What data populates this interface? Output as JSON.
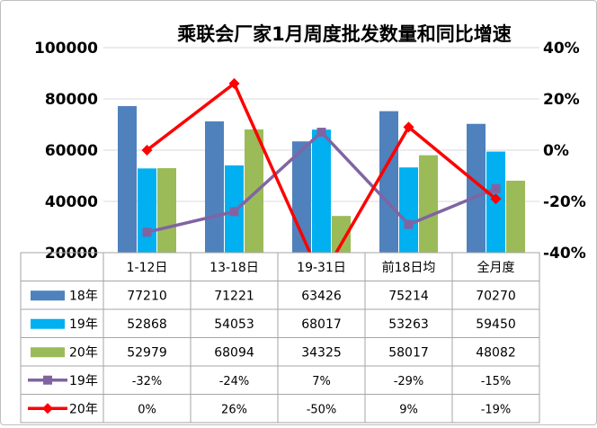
{
  "chart_data": {
    "type": "bar",
    "title": "乘联会厂家1月周度批发数量和同比增速",
    "categories": [
      "1-12日",
      "13-18日",
      "19-31日",
      "前18日均",
      "全月度"
    ],
    "y_left": {
      "min": 20000,
      "max": 100000,
      "ticks": [
        "20000",
        "40000",
        "60000",
        "80000",
        "100000"
      ]
    },
    "y_right": {
      "min": -40,
      "max": 40,
      "ticks": [
        "-40%",
        "-20%",
        "0%",
        "20%",
        "40%"
      ]
    },
    "grid": true,
    "series": [
      {
        "name": "18年",
        "kind": "bar",
        "color": "#4f81bd",
        "values": [
          77210,
          71221,
          63426,
          75214,
          70270
        ],
        "labels": [
          "77210",
          "71221",
          "63426",
          "75214",
          "70270"
        ]
      },
      {
        "name": "19年",
        "kind": "bar",
        "color": "#00b0f0",
        "values": [
          52868,
          54053,
          68017,
          53263,
          59450
        ],
        "labels": [
          "52868",
          "54053",
          "68017",
          "53263",
          "59450"
        ]
      },
      {
        "name": "20年",
        "kind": "bar",
        "color": "#9bbb59",
        "values": [
          52979,
          68094,
          34325,
          58017,
          48082
        ],
        "labels": [
          "52979",
          "68094",
          "34325",
          "58017",
          "48082"
        ]
      },
      {
        "name": "19年",
        "kind": "line",
        "color": "#8064a2",
        "marker": "square",
        "values": [
          -32,
          -24,
          7,
          -29,
          -15
        ],
        "labels": [
          "-32%",
          "-24%",
          "7%",
          "-29%",
          "-15%"
        ]
      },
      {
        "name": "20年",
        "kind": "line",
        "color": "#ff0000",
        "marker": "diamond",
        "values": [
          0,
          26,
          -50,
          9,
          -19
        ],
        "labels": [
          "0%",
          "26%",
          "-50%",
          "9%",
          "-19%"
        ]
      }
    ]
  }
}
